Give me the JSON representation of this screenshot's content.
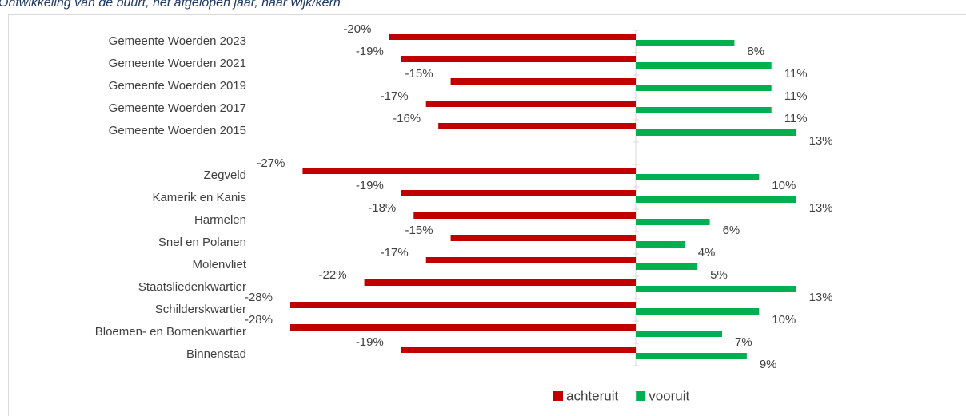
{
  "chart_data": {
    "type": "bar",
    "orientation": "horizontal",
    "title": "Ontwikkeling van de buurt, het afgelopen jaar, naar wijk/kern",
    "categories": [
      "Gemeente Woerden 2023",
      "Gemeente Woerden 2021",
      "Gemeente Woerden 2019",
      "Gemeente Woerden 2017",
      "Gemeente Woerden 2015",
      null,
      "Zegveld",
      "Kamerik en Kanis",
      "Harmelen",
      "Snel en Polanen",
      "Molenvliet",
      "Staatsliedenkwartier",
      "Schilderskwartier",
      "Bloemen- en Bomenkwartier",
      "Binnenstad"
    ],
    "series": [
      {
        "name": "achteruit",
        "color": "#c00000",
        "values": [
          -20,
          -19,
          -15,
          -17,
          -16,
          null,
          -27,
          -19,
          -18,
          -15,
          -17,
          -22,
          -28,
          -28,
          -19
        ],
        "value_labels": [
          "-20%",
          "-19%",
          "-15%",
          "-17%",
          "-16%",
          null,
          "-27%",
          "-19%",
          "-18%",
          "-15%",
          "-17%",
          "-22%",
          "-28%",
          "-28%",
          "-19%"
        ]
      },
      {
        "name": "vooruit",
        "color": "#00b050",
        "values": [
          8,
          11,
          11,
          11,
          13,
          null,
          10,
          13,
          6,
          4,
          5,
          13,
          10,
          7,
          9
        ],
        "value_labels": [
          "8%",
          "11%",
          "11%",
          "11%",
          "13%",
          null,
          "10%",
          "13%",
          "6%",
          "4%",
          "5%",
          "13%",
          "10%",
          "7%",
          "9%"
        ]
      }
    ],
    "legend": "bottom"
  }
}
